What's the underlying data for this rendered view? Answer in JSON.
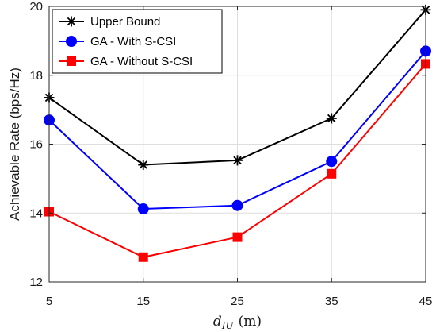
{
  "chart_data": {
    "type": "line",
    "title": "",
    "x": [
      5,
      15,
      25,
      35,
      45
    ],
    "xlim": [
      5,
      45
    ],
    "ylim": [
      12,
      20
    ],
    "xticks": [
      "5",
      "15",
      "25",
      "35",
      "45"
    ],
    "yticks": [
      "12",
      "14",
      "16",
      "18",
      "20"
    ],
    "xlabel": {
      "symbol": "d",
      "subscript": "IU",
      "unit": "(m)"
    },
    "ylabel": "Achievable Rate (bps/Hz)",
    "grid": true,
    "legend_position": "top-left",
    "series": [
      {
        "name": "Upper Bound",
        "values": [
          17.35,
          15.4,
          15.53,
          16.75,
          19.9
        ],
        "color": "#000000",
        "marker": "asterisk"
      },
      {
        "name": "GA - With S-CSI",
        "values": [
          16.7,
          14.12,
          14.22,
          15.5,
          18.7
        ],
        "color": "#0000ff",
        "marker": "circle"
      },
      {
        "name": "GA - Without S-CSI",
        "values": [
          14.04,
          12.72,
          13.3,
          15.14,
          18.33
        ],
        "color": "#ff0000",
        "marker": "square"
      }
    ]
  }
}
